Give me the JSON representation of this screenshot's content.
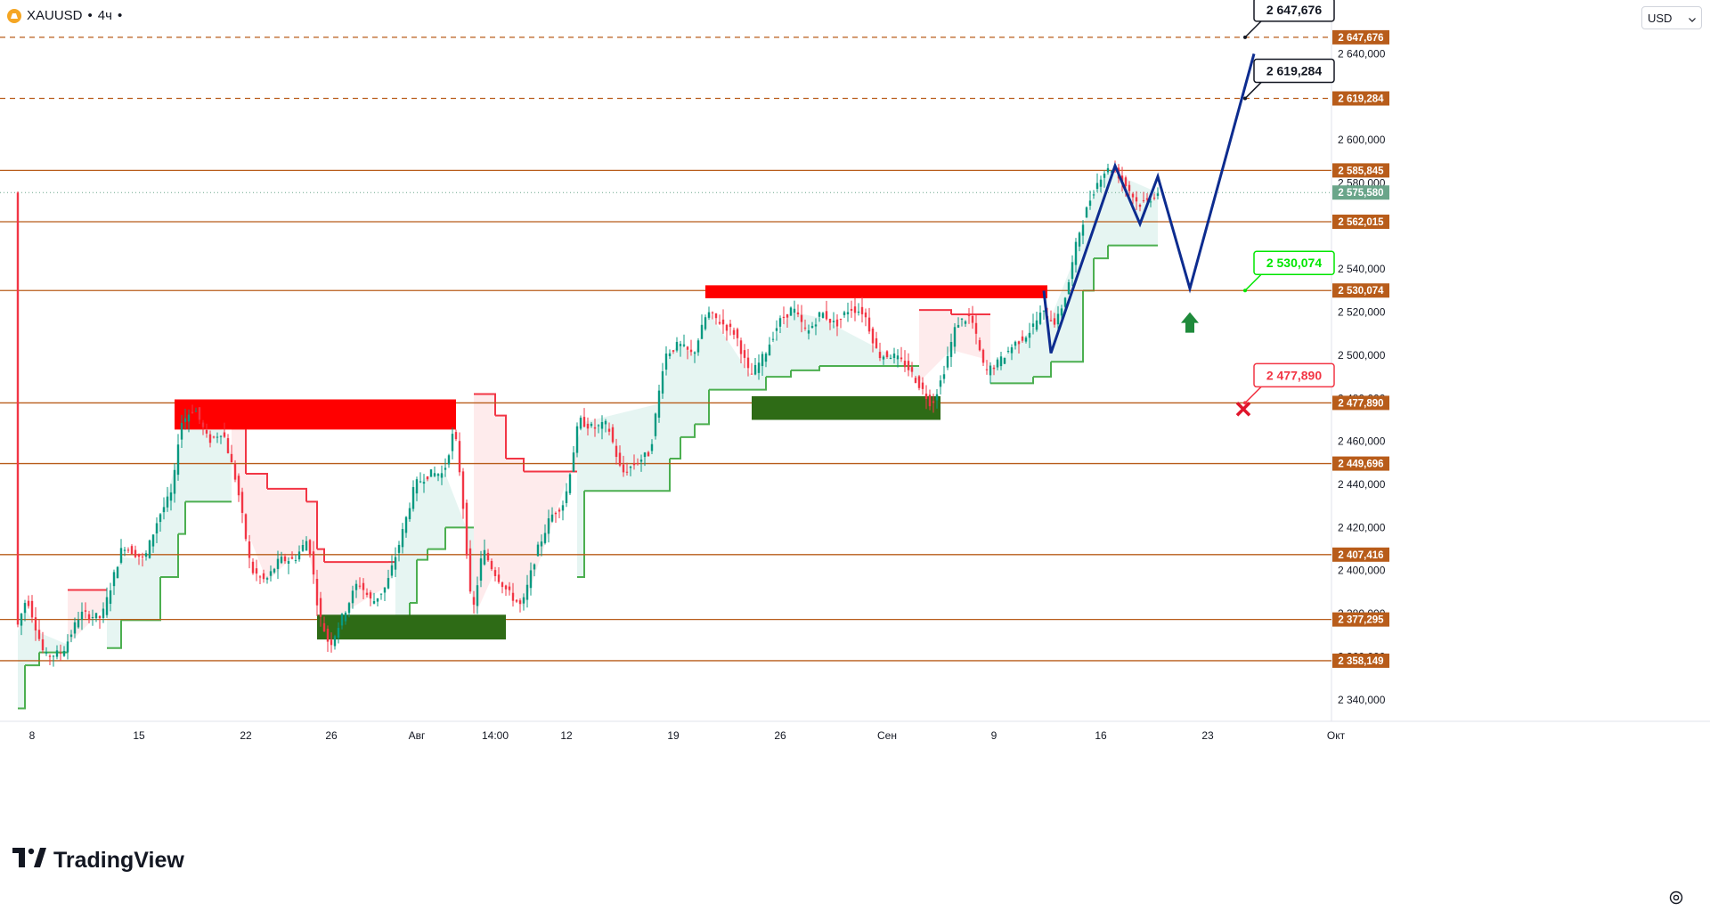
{
  "header": {
    "symbol": "XAUUSD",
    "interval": "4ч",
    "dot": "•"
  },
  "currency_selector": {
    "label": "USD"
  },
  "brand": {
    "name": "TradingView"
  },
  "icons": {
    "symbol": "gold-coin-icon",
    "dropdown": "chevron-down-icon",
    "settings": "gear-icon",
    "logo": "tradingview-logo-icon",
    "up_arrow": "up-arrow-icon",
    "cross": "cross-icon"
  },
  "colors": {
    "bull": "#089981",
    "bear": "#f23645",
    "level": "#b85c1a",
    "forecast": "#0d2c8f",
    "resistance_zone": "#ff0000",
    "support_zone": "#2e6b16",
    "green_label": "#00e600",
    "red_label": "#f23645",
    "price_badge": "#6aa58a"
  },
  "chart_data": {
    "type": "candlestick",
    "ylim": [
      2330,
      2665
    ],
    "y_ticks": [
      {
        "value": 2640,
        "label": "2 640,000"
      },
      {
        "value": 2600,
        "label": "2 600,000"
      },
      {
        "value": 2580,
        "label": "2 580,000"
      },
      {
        "value": 2540,
        "label": "2 540,000"
      },
      {
        "value": 2520,
        "label": "2 520,000"
      },
      {
        "value": 2500,
        "label": "2 500,000"
      },
      {
        "value": 2480,
        "label": "2 480,000"
      },
      {
        "value": 2460,
        "label": "2 460,000"
      },
      {
        "value": 2440,
        "label": "2 440,000"
      },
      {
        "value": 2420,
        "label": "2 420,000"
      },
      {
        "value": 2400,
        "label": "2 400,000"
      },
      {
        "value": 2380,
        "label": "2 380,000"
      },
      {
        "value": 2360,
        "label": "2 360,000"
      },
      {
        "value": 2340,
        "label": "2 340,000"
      }
    ],
    "x_ticks": [
      {
        "i": 4,
        "label": "8"
      },
      {
        "i": 34,
        "label": "15"
      },
      {
        "i": 64,
        "label": "22"
      },
      {
        "i": 88,
        "label": "26"
      },
      {
        "i": 112,
        "label": "Авг"
      },
      {
        "i": 134,
        "label": "14:00"
      },
      {
        "i": 154,
        "label": "12"
      },
      {
        "i": 184,
        "label": "19"
      },
      {
        "i": 214,
        "label": "26"
      },
      {
        "i": 244,
        "label": "Сен"
      },
      {
        "i": 274,
        "label": "9"
      },
      {
        "i": 304,
        "label": "16"
      },
      {
        "i": 334,
        "label": "23"
      },
      {
        "i": 370,
        "label": "Окт"
      }
    ],
    "current_price": {
      "value": 2575.58,
      "label": "2 575,580"
    },
    "levels": [
      {
        "value": 2647.676,
        "label": "2 647,676",
        "style": "dashed"
      },
      {
        "value": 2619.284,
        "label": "2 619,284",
        "style": "dashed"
      },
      {
        "value": 2585.845,
        "label": "2 585,845",
        "style": "solid"
      },
      {
        "value": 2562.015,
        "label": "2 562,015",
        "style": "solid"
      },
      {
        "value": 2530.074,
        "label": "2 530,074",
        "style": "solid"
      },
      {
        "value": 2477.89,
        "label": "2 477,890",
        "style": "solid"
      },
      {
        "value": 2449.696,
        "label": "2 449,696",
        "style": "solid"
      },
      {
        "value": 2407.416,
        "label": "2 407,416",
        "style": "solid"
      },
      {
        "value": 2377.295,
        "label": "2 377,295",
        "style": "solid"
      },
      {
        "value": 2358.149,
        "label": "2 358,149",
        "style": "solid"
      }
    ],
    "zones": [
      {
        "kind": "resistance",
        "i0": 44,
        "i1": 123,
        "top": 2479.5,
        "bottom": 2465.5
      },
      {
        "kind": "resistance",
        "i0": 193,
        "i1": 289,
        "top": 2532.5,
        "bottom": 2526.5
      },
      {
        "kind": "support",
        "i0": 84,
        "i1": 137,
        "top": 2379.5,
        "bottom": 2368.0
      },
      {
        "kind": "support",
        "i0": 206,
        "i1": 259,
        "top": 2481.0,
        "bottom": 2470.0
      }
    ],
    "callouts": [
      {
        "value": 2647.676,
        "label": "2 647,676",
        "kind": "target"
      },
      {
        "value": 2619.284,
        "label": "2 619,284",
        "kind": "target"
      },
      {
        "value": 2530.074,
        "label": "2 530,074",
        "kind": "entry"
      },
      {
        "value": 2477.89,
        "label": "2 477,890",
        "kind": "stop"
      }
    ],
    "forecast_path": [
      {
        "i": 288,
        "y": 2530
      },
      {
        "i": 290,
        "y": 2501
      },
      {
        "i": 308,
        "y": 2588
      },
      {
        "i": 315,
        "y": 2561
      },
      {
        "i": 320,
        "y": 2583
      },
      {
        "i": 329,
        "y": 2531
      },
      {
        "i": 347,
        "y": 2640
      }
    ],
    "markers": [
      {
        "kind": "up-arrow",
        "i": 329,
        "y": 2515
      },
      {
        "kind": "cross",
        "i": 344,
        "y": 2475
      }
    ],
    "supertrend": [
      {
        "i": 0,
        "y": 2336,
        "dir": "up"
      },
      {
        "i": 2,
        "y": 2356,
        "dir": "up"
      },
      {
        "i": 6,
        "y": 2362,
        "dir": "up"
      },
      {
        "i": 14,
        "y": 2391,
        "dir": "down"
      },
      {
        "i": 25,
        "y": 2364,
        "dir": "up"
      },
      {
        "i": 29,
        "y": 2377,
        "dir": "up"
      },
      {
        "i": 36,
        "y": 2377,
        "dir": "up"
      },
      {
        "i": 40,
        "y": 2397,
        "dir": "up"
      },
      {
        "i": 45,
        "y": 2417,
        "dir": "up"
      },
      {
        "i": 47,
        "y": 2432,
        "dir": "up"
      },
      {
        "i": 58,
        "y": 2432,
        "dir": "up"
      },
      {
        "i": 60,
        "y": 2466,
        "dir": "down"
      },
      {
        "i": 64,
        "y": 2445,
        "dir": "down"
      },
      {
        "i": 70,
        "y": 2438,
        "dir": "down"
      },
      {
        "i": 81,
        "y": 2432,
        "dir": "down"
      },
      {
        "i": 84,
        "y": 2410,
        "dir": "down"
      },
      {
        "i": 86,
        "y": 2404,
        "dir": "down"
      },
      {
        "i": 104,
        "y": 2404,
        "dir": "down"
      },
      {
        "i": 106,
        "y": 2375,
        "dir": "up"
      },
      {
        "i": 110,
        "y": 2385,
        "dir": "up"
      },
      {
        "i": 112,
        "y": 2405,
        "dir": "up"
      },
      {
        "i": 115,
        "y": 2410,
        "dir": "up"
      },
      {
        "i": 120,
        "y": 2420,
        "dir": "up"
      },
      {
        "i": 126,
        "y": 2420,
        "dir": "up"
      },
      {
        "i": 128,
        "y": 2482,
        "dir": "down"
      },
      {
        "i": 134,
        "y": 2472,
        "dir": "down"
      },
      {
        "i": 137,
        "y": 2452,
        "dir": "down"
      },
      {
        "i": 142,
        "y": 2446,
        "dir": "down"
      },
      {
        "i": 156,
        "y": 2446,
        "dir": "down"
      },
      {
        "i": 157,
        "y": 2397,
        "dir": "up"
      },
      {
        "i": 159,
        "y": 2437,
        "dir": "up"
      },
      {
        "i": 180,
        "y": 2437,
        "dir": "up"
      },
      {
        "i": 183,
        "y": 2452,
        "dir": "up"
      },
      {
        "i": 186,
        "y": 2462,
        "dir": "up"
      },
      {
        "i": 190,
        "y": 2468,
        "dir": "up"
      },
      {
        "i": 194,
        "y": 2484,
        "dir": "up"
      },
      {
        "i": 206,
        "y": 2484,
        "dir": "up"
      },
      {
        "i": 210,
        "y": 2490,
        "dir": "up"
      },
      {
        "i": 217,
        "y": 2493,
        "dir": "up"
      },
      {
        "i": 225,
        "y": 2495,
        "dir": "up"
      },
      {
        "i": 248,
        "y": 2495,
        "dir": "up"
      },
      {
        "i": 253,
        "y": 2521,
        "dir": "down"
      },
      {
        "i": 262,
        "y": 2519,
        "dir": "down"
      },
      {
        "i": 271,
        "y": 2519,
        "dir": "down"
      },
      {
        "i": 273,
        "y": 2487,
        "dir": "up"
      },
      {
        "i": 285,
        "y": 2490,
        "dir": "up"
      },
      {
        "i": 290,
        "y": 2497,
        "dir": "up"
      },
      {
        "i": 297,
        "y": 2497,
        "dir": "up"
      },
      {
        "i": 299,
        "y": 2530,
        "dir": "up"
      },
      {
        "i": 302,
        "y": 2545,
        "dir": "up"
      },
      {
        "i": 306,
        "y": 2551,
        "dir": "up"
      },
      {
        "i": 320,
        "y": 2551,
        "dir": "up"
      }
    ],
    "price_path": [
      {
        "i": 0,
        "y": 2372
      },
      {
        "i": 3,
        "y": 2388
      },
      {
        "i": 8,
        "y": 2360
      },
      {
        "i": 13,
        "y": 2362
      },
      {
        "i": 18,
        "y": 2380
      },
      {
        "i": 24,
        "y": 2378
      },
      {
        "i": 30,
        "y": 2412
      },
      {
        "i": 36,
        "y": 2405
      },
      {
        "i": 40,
        "y": 2425
      },
      {
        "i": 44,
        "y": 2437
      },
      {
        "i": 46,
        "y": 2468
      },
      {
        "i": 50,
        "y": 2476
      },
      {
        "i": 54,
        "y": 2460
      },
      {
        "i": 58,
        "y": 2465
      },
      {
        "i": 62,
        "y": 2440
      },
      {
        "i": 66,
        "y": 2400
      },
      {
        "i": 70,
        "y": 2395
      },
      {
        "i": 74,
        "y": 2405
      },
      {
        "i": 78,
        "y": 2405
      },
      {
        "i": 82,
        "y": 2415
      },
      {
        "i": 85,
        "y": 2380
      },
      {
        "i": 88,
        "y": 2365
      },
      {
        "i": 92,
        "y": 2380
      },
      {
        "i": 96,
        "y": 2395
      },
      {
        "i": 100,
        "y": 2385
      },
      {
        "i": 104,
        "y": 2393
      },
      {
        "i": 108,
        "y": 2415
      },
      {
        "i": 112,
        "y": 2440
      },
      {
        "i": 116,
        "y": 2445
      },
      {
        "i": 120,
        "y": 2445
      },
      {
        "i": 123,
        "y": 2466
      },
      {
        "i": 125,
        "y": 2440
      },
      {
        "i": 128,
        "y": 2378
      },
      {
        "i": 131,
        "y": 2410
      },
      {
        "i": 134,
        "y": 2400
      },
      {
        "i": 138,
        "y": 2390
      },
      {
        "i": 142,
        "y": 2383
      },
      {
        "i": 146,
        "y": 2408
      },
      {
        "i": 150,
        "y": 2425
      },
      {
        "i": 154,
        "y": 2432
      },
      {
        "i": 158,
        "y": 2470
      },
      {
        "i": 162,
        "y": 2466
      },
      {
        "i": 166,
        "y": 2468
      },
      {
        "i": 170,
        "y": 2445
      },
      {
        "i": 174,
        "y": 2450
      },
      {
        "i": 178,
        "y": 2455
      },
      {
        "i": 182,
        "y": 2500
      },
      {
        "i": 186,
        "y": 2505
      },
      {
        "i": 190,
        "y": 2500
      },
      {
        "i": 194,
        "y": 2520
      },
      {
        "i": 198,
        "y": 2515
      },
      {
        "i": 202,
        "y": 2510
      },
      {
        "i": 206,
        "y": 2490
      },
      {
        "i": 210,
        "y": 2500
      },
      {
        "i": 214,
        "y": 2515
      },
      {
        "i": 218,
        "y": 2522
      },
      {
        "i": 222,
        "y": 2510
      },
      {
        "i": 226,
        "y": 2520
      },
      {
        "i": 230,
        "y": 2514
      },
      {
        "i": 234,
        "y": 2522
      },
      {
        "i": 238,
        "y": 2520
      },
      {
        "i": 242,
        "y": 2500
      },
      {
        "i": 246,
        "y": 2500
      },
      {
        "i": 250,
        "y": 2495
      },
      {
        "i": 254,
        "y": 2485
      },
      {
        "i": 257,
        "y": 2477
      },
      {
        "i": 260,
        "y": 2490
      },
      {
        "i": 264,
        "y": 2515
      },
      {
        "i": 268,
        "y": 2518
      },
      {
        "i": 272,
        "y": 2492
      },
      {
        "i": 276,
        "y": 2497
      },
      {
        "i": 280,
        "y": 2505
      },
      {
        "i": 284,
        "y": 2510
      },
      {
        "i": 288,
        "y": 2520
      },
      {
        "i": 292,
        "y": 2515
      },
      {
        "i": 295,
        "y": 2530
      },
      {
        "i": 298,
        "y": 2555
      },
      {
        "i": 302,
        "y": 2575
      },
      {
        "i": 305,
        "y": 2585
      },
      {
        "i": 308,
        "y": 2587
      },
      {
        "i": 312,
        "y": 2578
      },
      {
        "i": 315,
        "y": 2570
      },
      {
        "i": 318,
        "y": 2572
      },
      {
        "i": 320,
        "y": 2575.58
      }
    ]
  }
}
